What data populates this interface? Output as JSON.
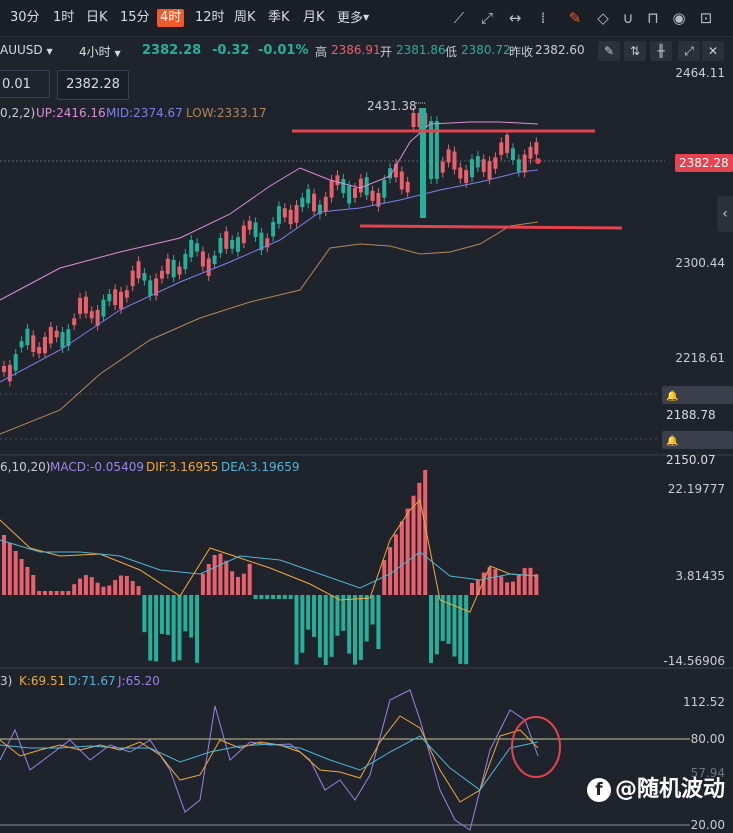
{
  "toolbar": {
    "timeframes": [
      "30分",
      "1时",
      "日K",
      "15分",
      "4时",
      "12时",
      "周K",
      "季K",
      "月K",
      "更多"
    ],
    "active": "4时",
    "icons": [
      "trend-line-icon",
      "ray-icon",
      "horizontal-line-icon",
      "dashed-grid-icon",
      "edit-icon",
      "eraser-icon",
      "magnet-icon",
      "lock-icon",
      "eye-icon",
      "delete-icon"
    ]
  },
  "quote": {
    "symbol": "XAUUSD",
    "symbol_visible": "AUUSD",
    "period": "4小时",
    "last": "2382.28",
    "change": "-0.32",
    "change_pct": "-0.01%",
    "high_label": "高",
    "high": "2386.91",
    "open_label": "开",
    "open": "2381.86",
    "low_label": "低",
    "low": "2380.72",
    "prev_label": "昨收",
    "prev": "2382.60"
  },
  "order": {
    "step": "0.01",
    "price": "2382.28"
  },
  "boll": {
    "params": "0,2,2)",
    "up_label": "UP:2416.16",
    "mid_label": "MID:2374.67",
    "low_label": "LOW:2333.17"
  },
  "main_chart": {
    "peak_label": "2431.38",
    "axis_ticks": [
      "2464.11",
      "2300.44",
      "2218.61"
    ],
    "alert_lines": [
      "2188.78",
      "2150.07"
    ],
    "last_price_tag": "2382.28",
    "bottom_partial": "2150.07"
  },
  "macd": {
    "params": "6,10,20)",
    "macd_label": "MACD:-0.05409",
    "dif_label": "DIF:3.16955",
    "dea_label": "DEA:3.19659",
    "axis_ticks": [
      "22.19777",
      "3.81435",
      "-14.56906"
    ]
  },
  "kdj": {
    "params": "3)",
    "k_label": "K:69.51",
    "d_label": "D:71.67",
    "j_label": "J:65.20",
    "axis_ticks": [
      "112.52",
      "80.00",
      "57.94",
      "20.00"
    ]
  },
  "watermark": "@随机波动",
  "colors": {
    "bg": "#1f232c",
    "up": "#e9616c",
    "down": "#26b09a",
    "red": "#e5434f",
    "boll_up": "#d98fd8",
    "boll_mid": "#7b80e8",
    "boll_low": "#b1875a",
    "dif": "#f0a93c",
    "dea": "#4fb6d6",
    "k": "#f0a93c",
    "d": "#4fb6d6",
    "j": "#9a83e6"
  }
}
